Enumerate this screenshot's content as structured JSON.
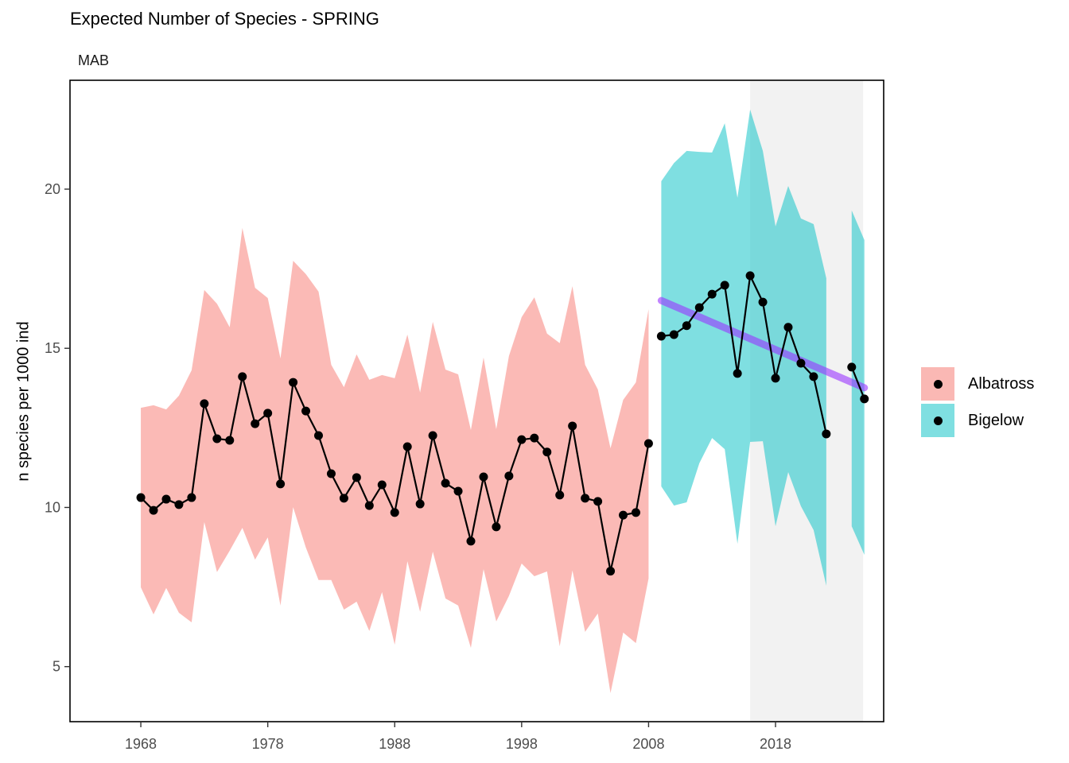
{
  "chart_data": {
    "type": "line",
    "title": "Expected Number of Species - SPRING",
    "subtitle": "MAB",
    "xlabel": "",
    "ylabel": "n species per 1000 ind",
    "xlim": [
      1962.42,
      2026.52
    ],
    "ylim": [
      3.27,
      23.42
    ],
    "x_ticks": [
      1968,
      1978,
      1988,
      1998,
      2008,
      2018
    ],
    "y_ticks": [
      5,
      10,
      15,
      20
    ],
    "grid": false,
    "legend_position": "right",
    "highlight_band": {
      "x_start": 2016,
      "x_end": 2024.9,
      "color": "#F2F2F2"
    },
    "series": [
      {
        "name": "Albatross",
        "fill_color": "#F8766D",
        "fill_opacity": 0.5,
        "x": [
          1968,
          1969,
          1970,
          1971,
          1972,
          1973,
          1974,
          1975,
          1976,
          1977,
          1978,
          1979,
          1980,
          1981,
          1982,
          1983,
          1984,
          1985,
          1986,
          1987,
          1988,
          1989,
          1990,
          1991,
          1992,
          1993,
          1994,
          1995,
          1996,
          1997,
          1998,
          1999,
          2000,
          2001,
          2002,
          2003,
          2004,
          2005,
          2006,
          2007,
          2008
        ],
        "values": [
          10.31,
          9.91,
          10.26,
          10.09,
          10.31,
          13.26,
          12.16,
          12.11,
          14.11,
          12.63,
          12.96,
          10.74,
          13.93,
          13.03,
          12.26,
          11.06,
          10.29,
          10.94,
          10.06,
          10.71,
          9.84,
          11.91,
          10.11,
          12.26,
          10.76,
          10.51,
          8.94,
          10.96,
          9.39,
          10.99,
          12.13,
          12.18,
          11.74,
          10.39,
          12.56,
          10.29,
          10.19,
          8.0,
          9.76,
          9.84,
          12.01
        ],
        "upper": [
          13.13,
          13.21,
          13.08,
          13.51,
          14.31,
          16.83,
          16.4,
          15.66,
          18.78,
          16.9,
          16.58,
          14.68,
          17.75,
          17.33,
          16.78,
          14.48,
          13.78,
          14.81,
          14.01,
          14.16,
          14.06,
          15.43,
          13.61,
          15.83,
          14.33,
          14.18,
          12.43,
          14.71,
          12.46,
          14.76,
          15.98,
          16.6,
          15.46,
          15.16,
          16.95,
          14.48,
          13.71,
          11.86,
          13.38,
          13.93,
          16.23
        ],
        "lower": [
          7.49,
          6.64,
          7.47,
          6.69,
          6.39,
          9.54,
          7.97,
          8.64,
          9.36,
          8.36,
          9.06,
          6.92,
          10.01,
          8.74,
          7.72,
          7.72,
          6.79,
          7.04,
          6.12,
          7.34,
          5.69,
          8.31,
          6.72,
          8.61,
          7.14,
          6.92,
          5.59,
          8.06,
          6.42,
          7.22,
          8.24,
          7.84,
          7.99,
          5.64,
          8.02,
          6.09,
          6.67,
          4.17,
          6.07,
          5.74,
          7.77
        ]
      },
      {
        "name": "Bigelow",
        "fill_color": "#00BFC4",
        "fill_opacity": 0.5,
        "segments": [
          {
            "x": [
              2009,
              2010,
              2011,
              2012,
              2013,
              2014,
              2015,
              2016,
              2017,
              2018,
              2019,
              2020,
              2021,
              2022
            ],
            "values": [
              15.38,
              15.43,
              15.71,
              16.28,
              16.7,
              16.98,
              14.21,
              17.28,
              16.45,
              14.06,
              15.66,
              14.53,
              14.11,
              12.31
            ],
            "upper": [
              20.25,
              20.82,
              21.2,
              21.17,
              21.15,
              22.07,
              19.73,
              22.5,
              21.2,
              18.83,
              20.1,
              19.08,
              18.9,
              17.2
            ],
            "lower": [
              10.66,
              10.06,
              10.16,
              11.39,
              12.18,
              11.83,
              8.86,
              12.06,
              12.08,
              9.41,
              11.11,
              10.04,
              9.29,
              7.54
            ]
          },
          {
            "x": [
              2024,
              2025
            ],
            "values": [
              14.41,
              13.41
            ],
            "upper": [
              19.33,
              18.4
            ],
            "lower": [
              9.41,
              8.51
            ]
          }
        ]
      }
    ],
    "trend": {
      "color": "#9933FF",
      "opacity": 0.6,
      "x": [
        2009,
        2025
      ],
      "values": [
        16.5,
        13.76
      ]
    }
  },
  "legend": {
    "items": [
      {
        "label": "Albatross",
        "color": "#FAB8B4"
      },
      {
        "label": "Bigelow",
        "color": "#7FDFE1"
      }
    ]
  }
}
